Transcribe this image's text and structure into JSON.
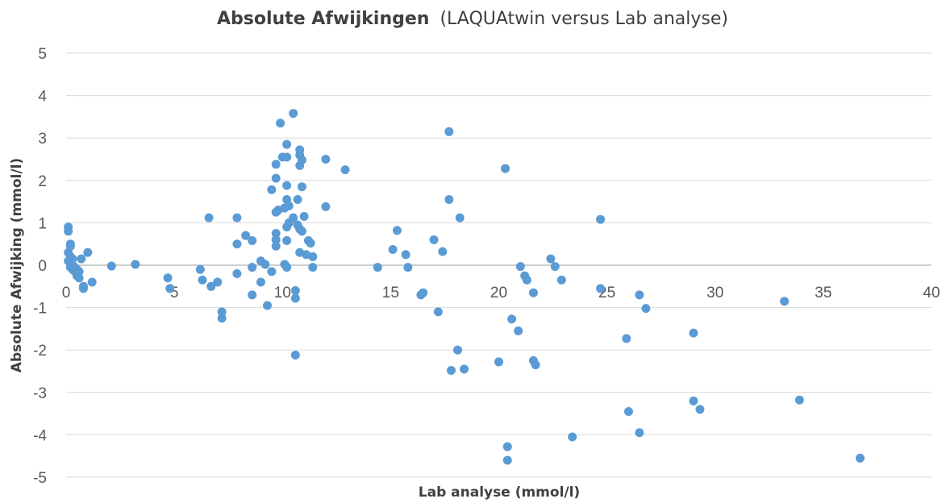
{
  "chart_data": {
    "type": "scatter",
    "title_bold": "Absolute Afwijkingen",
    "title_rest": "(LAQUAtwin versus Lab analyse)",
    "xlabel": "Lab analyse (mmol/l)",
    "ylabel": "Absolute Afwijking (mmol/l)",
    "xlim": [
      0,
      40
    ],
    "ylim": [
      -5,
      5
    ],
    "x_ticks": [
      0,
      5,
      10,
      15,
      20,
      25,
      30,
      35,
      40
    ],
    "y_ticks": [
      5,
      4,
      3,
      2,
      1,
      0,
      -1,
      -2,
      -3,
      -4,
      -5
    ],
    "grid": "horizontal",
    "legend": "none",
    "color": "#5b9bd5",
    "series": [
      {
        "x": [
          0.1,
          0.1,
          0.2,
          0.2,
          0.1,
          0.2,
          0.3,
          0.1,
          0.2,
          0.3,
          0.4,
          0.5,
          0.6,
          0.2,
          0.3,
          0.4,
          0.5,
          0.5,
          0.6,
          0.7,
          0.8,
          0.8,
          1.0,
          1.2,
          2.1,
          3.2,
          4.7,
          4.8,
          6.2,
          6.3,
          6.6,
          6.7,
          7.0,
          7.2,
          7.2,
          7.9,
          7.9,
          7.9,
          8.3,
          8.6,
          8.6,
          8.6,
          9.0,
          9.0,
          9.2,
          9.3,
          9.5,
          9.5,
          9.7,
          9.7,
          9.7,
          9.7,
          9.7,
          9.7,
          9.8,
          9.9,
          10.0,
          10.1,
          10.1,
          10.2,
          10.2,
          10.2,
          10.2,
          10.2,
          10.2,
          10.2,
          10.3,
          10.3,
          10.5,
          10.5,
          10.6,
          10.6,
          10.6,
          10.7,
          10.7,
          10.8,
          10.8,
          10.8,
          10.8,
          10.8,
          10.9,
          10.9,
          10.9,
          11.0,
          11.1,
          11.2,
          11.3,
          11.4,
          11.4,
          12.0,
          12.0,
          12.9,
          14.4,
          15.1,
          15.3,
          15.7,
          15.8,
          16.4,
          16.5,
          17.0,
          17.2,
          17.4,
          17.7,
          17.7,
          17.8,
          18.1,
          18.2,
          18.4,
          20.0,
          20.3,
          20.4,
          20.4,
          20.6,
          20.9,
          21.0,
          21.2,
          21.3,
          21.6,
          21.6,
          21.7,
          22.4,
          22.6,
          22.9,
          23.4,
          24.7,
          24.7,
          25.9,
          26.0,
          26.5,
          26.5,
          26.8,
          29.0,
          29.0,
          29.3,
          33.2,
          33.9,
          36.7
        ],
        "y": [
          0.9,
          0.8,
          0.5,
          0.45,
          0.3,
          0.2,
          0.15,
          0.1,
          0.05,
          0.0,
          -0.05,
          -0.1,
          -0.15,
          -0.05,
          -0.1,
          -0.15,
          -0.2,
          -0.25,
          -0.3,
          0.15,
          -0.5,
          -0.55,
          0.3,
          -0.4,
          -0.02,
          0.02,
          -0.3,
          -0.55,
          -0.1,
          -0.35,
          1.12,
          -0.5,
          -0.4,
          -1.1,
          -1.25,
          1.12,
          0.5,
          -0.2,
          0.7,
          0.58,
          -0.05,
          -0.7,
          0.1,
          -0.4,
          0.02,
          -0.95,
          1.78,
          -0.15,
          2.38,
          2.05,
          1.25,
          0.75,
          0.6,
          0.45,
          1.3,
          3.35,
          2.55,
          0.02,
          1.35,
          2.85,
          2.55,
          1.88,
          1.55,
          0.9,
          0.58,
          -0.05,
          1.4,
          1.0,
          3.58,
          1.12,
          -0.6,
          -0.78,
          -2.12,
          1.55,
          0.95,
          2.72,
          2.6,
          2.35,
          0.85,
          0.3,
          2.48,
          1.85,
          0.8,
          1.15,
          0.25,
          0.58,
          0.52,
          0.2,
          -0.05,
          2.5,
          1.38,
          2.25,
          -0.05,
          0.37,
          0.82,
          0.25,
          -0.05,
          -0.7,
          -0.65,
          0.6,
          -1.1,
          0.32,
          3.15,
          1.55,
          -2.48,
          -2.0,
          1.12,
          -2.45,
          -2.28,
          2.28,
          -4.28,
          -4.6,
          -1.27,
          -1.55,
          -0.03,
          -0.25,
          -0.35,
          -0.65,
          -2.25,
          -2.35,
          0.15,
          -0.03,
          -0.35,
          -4.05,
          1.08,
          -0.55,
          -1.73,
          -3.45,
          -0.7,
          -3.95,
          -1.02,
          -1.6,
          -3.2,
          -3.4,
          -0.85,
          -3.18,
          -4.55
        ]
      }
    ]
  }
}
